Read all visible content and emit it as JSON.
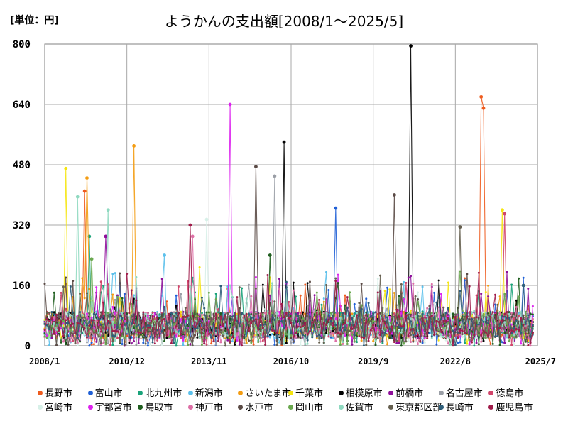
{
  "chart_data": {
    "type": "line",
    "title": "ようかんの支出額[2008/1～2025/5]",
    "unit_label": "[単位：円]",
    "xlabel": "",
    "ylabel": "",
    "ylim": [
      0,
      800
    ],
    "yticks": [
      0,
      160,
      320,
      480,
      640,
      800
    ],
    "x_range": [
      "2008/1",
      "2025/7"
    ],
    "xticks": [
      "2008/1",
      "2010/12",
      "2013/11",
      "2016/10",
      "2019/9",
      "2022/8",
      "2025/7"
    ],
    "grid": true,
    "legend_position": "bottom",
    "series": [
      {
        "name": "長野市",
        "color": "#ee5b1e",
        "peaks": [
          {
            "x": "2009/6",
            "y": 410
          },
          {
            "x": "2023/7",
            "y": 660
          },
          {
            "x": "2023/8",
            "y": 630
          }
        ]
      },
      {
        "name": "富山市",
        "color": "#1f5fd6",
        "peaks": [
          {
            "x": "2018/5",
            "y": 365
          }
        ]
      },
      {
        "name": "北九州市",
        "color": "#1aa37a",
        "peaks": [
          {
            "x": "2009/8",
            "y": 290
          }
        ]
      },
      {
        "name": "新潟市",
        "color": "#5bc0eb",
        "peaks": [
          {
            "x": "2012/4",
            "y": 240
          }
        ]
      },
      {
        "name": "さいたま市",
        "color": "#f39c12",
        "peaks": [
          {
            "x": "2009/7",
            "y": 445
          },
          {
            "x": "2011/3",
            "y": 530
          }
        ]
      },
      {
        "name": "千葉市",
        "color": "#f5e50f",
        "peaks": [
          {
            "x": "2008/10",
            "y": 470
          },
          {
            "x": "2024/4",
            "y": 360
          }
        ]
      },
      {
        "name": "相模原市",
        "color": "#000000",
        "peaks": [
          {
            "x": "2016/7",
            "y": 540
          },
          {
            "x": "2021/1",
            "y": 795
          }
        ]
      },
      {
        "name": "前橋市",
        "color": "#8e0f9a",
        "peaks": [
          {
            "x": "2010/3",
            "y": 290
          }
        ]
      },
      {
        "name": "名古屋市",
        "color": "#9a9ea6",
        "peaks": [
          {
            "x": "2016/3",
            "y": 450
          }
        ]
      },
      {
        "name": "徳島市",
        "color": "#d1456b",
        "peaks": [
          {
            "x": "2024/5",
            "y": 350
          }
        ]
      },
      {
        "name": "宮崎市",
        "color": "#d7f0e8",
        "peaks": [
          {
            "x": "2013/10",
            "y": 335
          }
        ]
      },
      {
        "name": "宇都宮市",
        "color": "#dd22ee",
        "peaks": [
          {
            "x": "2014/8",
            "y": 640
          }
        ]
      },
      {
        "name": "鳥取市",
        "color": "#1f5e1f",
        "peaks": [
          {
            "x": "2016/1",
            "y": 240
          }
        ]
      },
      {
        "name": "神戸市",
        "color": "#dd6fa6",
        "peaks": [
          {
            "x": "2013/4",
            "y": 290
          }
        ]
      },
      {
        "name": "水戸市",
        "color": "#5a4a45",
        "peaks": [
          {
            "x": "2015/7",
            "y": 475
          },
          {
            "x": "2020/6",
            "y": 400
          }
        ]
      },
      {
        "name": "岡山市",
        "color": "#6aa84f",
        "peaks": [
          {
            "x": "2009/9",
            "y": 230
          }
        ]
      },
      {
        "name": "佐賀市",
        "color": "#8fd9c0",
        "peaks": [
          {
            "x": "2009/3",
            "y": 395
          },
          {
            "x": "2010/4",
            "y": 360
          }
        ]
      },
      {
        "name": "東京都区部",
        "color": "#666050",
        "peaks": [
          {
            "x": "2022/10",
            "y": 315
          }
        ]
      },
      {
        "name": "長崎市",
        "color": "#2e5e7a",
        "peaks": [
          {
            "x": "2025/1",
            "y": 160
          }
        ]
      },
      {
        "name": "鹿児島市",
        "color": "#a01c4a",
        "peaks": [
          {
            "x": "2013/3",
            "y": 320
          }
        ]
      }
    ]
  }
}
